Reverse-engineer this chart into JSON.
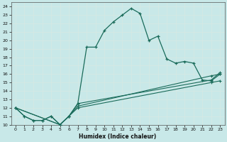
{
  "xlabel": "Humidex (Indice chaleur)",
  "bg_color": "#c8e8e8",
  "line_color": "#1a6b5a",
  "grid_color": "#d4e8e4",
  "xlim": [
    -0.5,
    23.5
  ],
  "ylim": [
    10,
    24.5
  ],
  "xticks": [
    0,
    1,
    2,
    3,
    4,
    5,
    6,
    7,
    8,
    9,
    10,
    11,
    12,
    13,
    14,
    15,
    16,
    17,
    18,
    19,
    20,
    21,
    22,
    23
  ],
  "yticks": [
    10,
    11,
    12,
    13,
    14,
    15,
    16,
    17,
    18,
    19,
    20,
    21,
    22,
    23,
    24
  ],
  "line1_x": [
    0,
    1,
    2,
    3,
    4,
    5,
    6,
    7,
    8,
    9,
    10,
    11,
    12,
    13,
    14,
    15,
    16,
    17,
    18,
    19,
    20,
    21,
    22,
    23
  ],
  "line1_y": [
    12,
    11,
    10.5,
    10.5,
    11,
    10,
    11,
    12.5,
    19.2,
    19.2,
    21.2,
    22.2,
    23.0,
    23.8,
    23.2,
    20.0,
    20.5,
    17.8,
    17.3,
    17.5,
    17.3,
    15.3,
    15.2,
    16.0
  ],
  "line2_x": [
    0,
    1,
    2,
    3,
    4,
    5,
    6,
    7,
    22,
    23
  ],
  "line2_y": [
    12,
    11,
    10.5,
    10.5,
    11,
    10,
    11,
    12.5,
    15.3,
    16.2
  ],
  "line3_x": [
    0,
    5,
    6,
    7,
    22,
    23
  ],
  "line3_y": [
    12,
    10,
    11,
    12.2,
    15.8,
    16.0
  ],
  "line4_x": [
    0,
    5,
    6,
    7,
    22,
    23
  ],
  "line4_y": [
    12,
    10,
    11,
    12.0,
    15.0,
    15.2
  ]
}
